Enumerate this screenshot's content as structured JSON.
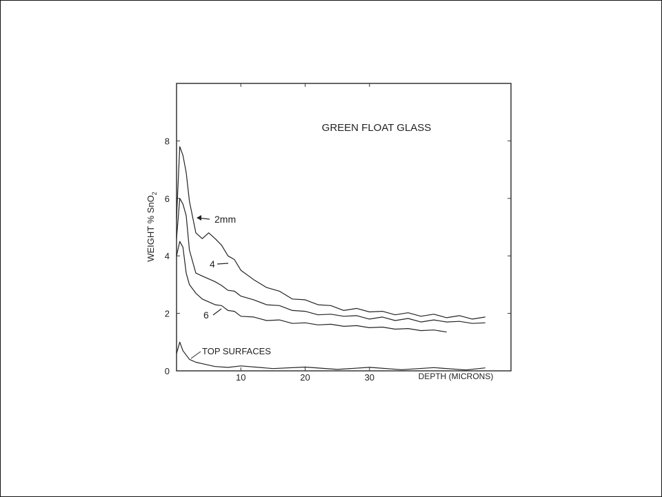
{
  "chart_data": {
    "type": "line",
    "title": "GREEN FLOAT GLASS",
    "xlabel": "DEPTH (MICRONS)",
    "ylabel": "WEIGHT % SnO",
    "ylabel_subscript": "2",
    "xlim": [
      0,
      52
    ],
    "ylim": [
      0,
      10
    ],
    "x_ticks": [
      "10",
      "20",
      "30"
    ],
    "y_ticks": [
      "0",
      "2",
      "4",
      "6",
      "8"
    ],
    "annotations": {
      "top_surfaces": "TOP SURFACES",
      "series_2mm": "2mm",
      "series_4": "4",
      "series_6": "6"
    },
    "series": [
      {
        "name": "2mm",
        "x": [
          0,
          0.5,
          1,
          1.5,
          2,
          3,
          4,
          5,
          6,
          7,
          8,
          9,
          10,
          12,
          14,
          16,
          18,
          20,
          22,
          24,
          26,
          28,
          30,
          32,
          34,
          36,
          38,
          40,
          42,
          44,
          46,
          48
        ],
        "y": [
          5.3,
          7.8,
          7.5,
          6.9,
          5.9,
          4.8,
          4.6,
          4.8,
          4.6,
          4.3,
          4.0,
          3.8,
          3.5,
          3.1,
          2.9,
          2.7,
          2.5,
          2.4,
          2.3,
          2.2,
          2.1,
          2.1,
          2.05,
          2.0,
          1.95,
          1.95,
          1.9,
          1.9,
          1.85,
          1.85,
          1.8,
          1.8
        ]
      },
      {
        "name": "4",
        "x": [
          0,
          0.5,
          1,
          1.5,
          2,
          3,
          4,
          5,
          6,
          7,
          8,
          9,
          10,
          12,
          14,
          16,
          18,
          20,
          22,
          24,
          26,
          28,
          30,
          32,
          34,
          36,
          38,
          40,
          42,
          44,
          46,
          48
        ],
        "y": [
          4.6,
          6.0,
          5.8,
          5.4,
          4.2,
          3.4,
          3.3,
          3.2,
          3.1,
          2.9,
          2.8,
          2.7,
          2.6,
          2.4,
          2.3,
          2.2,
          2.1,
          2.0,
          1.95,
          1.9,
          1.9,
          1.85,
          1.8,
          1.8,
          1.75,
          1.75,
          1.7,
          1.7,
          1.7,
          1.65,
          1.65,
          1.6
        ]
      },
      {
        "name": "6",
        "x": [
          0,
          0.5,
          1,
          1.5,
          2,
          3,
          4,
          5,
          6,
          7,
          8,
          9,
          10,
          12,
          14,
          16,
          18,
          20,
          22,
          24,
          26,
          28,
          30,
          32,
          34,
          36,
          38,
          40,
          42
        ],
        "y": [
          4.0,
          4.5,
          4.3,
          3.4,
          3.0,
          2.7,
          2.5,
          2.4,
          2.3,
          2.2,
          2.1,
          2.0,
          1.9,
          1.8,
          1.75,
          1.7,
          1.65,
          1.6,
          1.6,
          1.55,
          1.55,
          1.5,
          1.5,
          1.45,
          1.45,
          1.4,
          1.4,
          1.35,
          1.35
        ]
      },
      {
        "name": "TOP SURFACES",
        "x": [
          0,
          0.5,
          1,
          2,
          3,
          4,
          5,
          6,
          8,
          10,
          15,
          20,
          25,
          30,
          35,
          40,
          45,
          48
        ],
        "y": [
          0.6,
          1.0,
          0.7,
          0.4,
          0.3,
          0.25,
          0.2,
          0.15,
          0.12,
          0.1,
          0.08,
          0.06,
          0.05,
          0.05,
          0.04,
          0.04,
          0.03,
          0.03
        ]
      }
    ]
  }
}
